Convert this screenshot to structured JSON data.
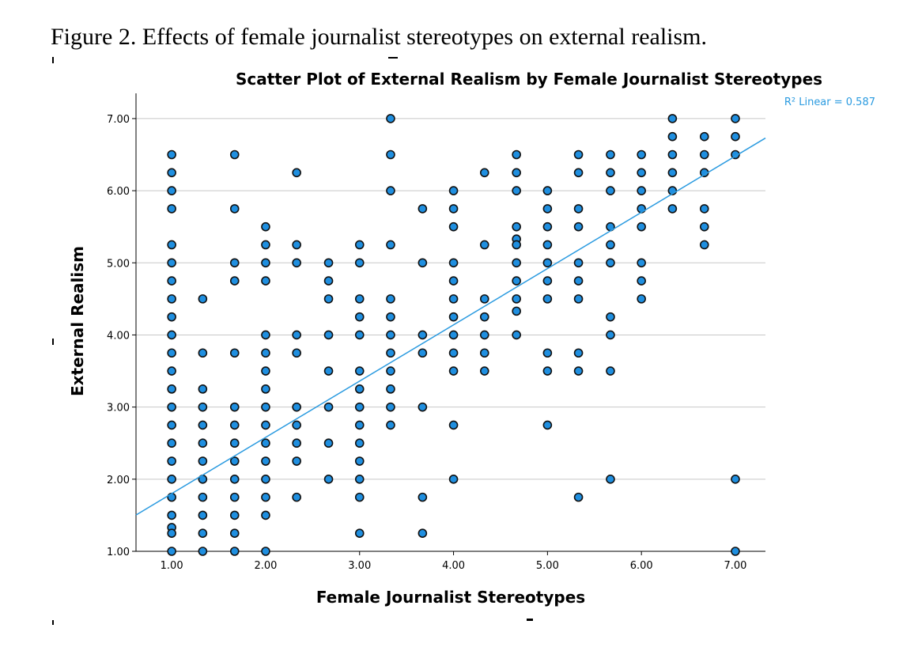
{
  "figure_caption": "Figure 2. Effects of female journalist stereotypes on external realism.",
  "chart_data": {
    "type": "scatter",
    "title": "Scatter Plot of External Realism by Female Journalist Stereotypes",
    "xlabel": "Female Journalist Stereotypes",
    "ylabel": "External Realism",
    "xlim": [
      0.62,
      7.32
    ],
    "ylim": [
      1.0,
      7.35
    ],
    "x_ticks": [
      1,
      2,
      3,
      4,
      5,
      6,
      7
    ],
    "y_ticks": [
      1,
      2,
      3,
      4,
      5,
      6,
      7
    ],
    "x_tick_labels": [
      "1.00",
      "2.00",
      "3.00",
      "4.00",
      "5.00",
      "6.00",
      "7.00"
    ],
    "y_tick_labels": [
      "1.00",
      "2.00",
      "3.00",
      "4.00",
      "5.00",
      "6.00",
      "7.00"
    ],
    "grid": "horizontal",
    "point_color": "#1f8fe0",
    "fit_line": {
      "label": "R² Linear = 0.587",
      "r_squared": 0.587,
      "intercept": 1.02,
      "slope": 0.78,
      "color": "#2b9be0"
    },
    "points": [
      [
        1.0,
        6.5
      ],
      [
        1.0,
        6.25
      ],
      [
        1.0,
        6.0
      ],
      [
        1.0,
        5.75
      ],
      [
        1.0,
        5.25
      ],
      [
        1.0,
        5.0
      ],
      [
        1.0,
        4.75
      ],
      [
        1.0,
        4.5
      ],
      [
        1.0,
        4.25
      ],
      [
        1.0,
        4.0
      ],
      [
        1.0,
        3.75
      ],
      [
        1.0,
        3.5
      ],
      [
        1.0,
        3.25
      ],
      [
        1.0,
        3.0
      ],
      [
        1.0,
        2.75
      ],
      [
        1.0,
        2.5
      ],
      [
        1.0,
        2.25
      ],
      [
        1.0,
        2.0
      ],
      [
        1.0,
        1.75
      ],
      [
        1.0,
        1.5
      ],
      [
        1.0,
        1.33
      ],
      [
        1.0,
        1.25
      ],
      [
        1.0,
        1.0
      ],
      [
        1.33,
        4.5
      ],
      [
        1.33,
        3.75
      ],
      [
        1.33,
        3.25
      ],
      [
        1.33,
        3.0
      ],
      [
        1.33,
        2.75
      ],
      [
        1.33,
        2.5
      ],
      [
        1.33,
        2.25
      ],
      [
        1.33,
        2.0
      ],
      [
        1.33,
        1.75
      ],
      [
        1.33,
        1.5
      ],
      [
        1.33,
        1.25
      ],
      [
        1.33,
        1.0
      ],
      [
        1.67,
        6.5
      ],
      [
        1.67,
        5.75
      ],
      [
        1.67,
        5.0
      ],
      [
        1.67,
        4.75
      ],
      [
        1.67,
        3.75
      ],
      [
        1.67,
        3.0
      ],
      [
        1.67,
        2.75
      ],
      [
        1.67,
        2.5
      ],
      [
        1.67,
        2.25
      ],
      [
        1.67,
        2.0
      ],
      [
        1.67,
        1.75
      ],
      [
        1.67,
        1.5
      ],
      [
        1.67,
        1.25
      ],
      [
        1.67,
        1.0
      ],
      [
        2.0,
        5.5
      ],
      [
        2.0,
        5.25
      ],
      [
        2.0,
        5.0
      ],
      [
        2.0,
        4.75
      ],
      [
        2.0,
        4.0
      ],
      [
        2.0,
        3.75
      ],
      [
        2.0,
        3.5
      ],
      [
        2.0,
        3.25
      ],
      [
        2.0,
        3.0
      ],
      [
        2.0,
        2.75
      ],
      [
        2.0,
        2.5
      ],
      [
        2.0,
        2.25
      ],
      [
        2.0,
        2.0
      ],
      [
        2.0,
        1.75
      ],
      [
        2.0,
        1.5
      ],
      [
        2.0,
        1.0
      ],
      [
        2.33,
        6.25
      ],
      [
        2.33,
        5.25
      ],
      [
        2.33,
        5.0
      ],
      [
        2.33,
        4.0
      ],
      [
        2.33,
        3.75
      ],
      [
        2.33,
        3.0
      ],
      [
        2.33,
        2.75
      ],
      [
        2.33,
        2.5
      ],
      [
        2.33,
        2.25
      ],
      [
        2.33,
        1.75
      ],
      [
        2.67,
        5.0
      ],
      [
        2.67,
        4.75
      ],
      [
        2.67,
        4.5
      ],
      [
        2.67,
        4.0
      ],
      [
        2.67,
        3.5
      ],
      [
        2.67,
        3.0
      ],
      [
        2.67,
        2.5
      ],
      [
        2.67,
        2.0
      ],
      [
        3.0,
        5.25
      ],
      [
        3.0,
        5.0
      ],
      [
        3.0,
        4.5
      ],
      [
        3.0,
        4.25
      ],
      [
        3.0,
        4.0
      ],
      [
        3.0,
        3.5
      ],
      [
        3.0,
        3.25
      ],
      [
        3.0,
        3.0
      ],
      [
        3.0,
        2.75
      ],
      [
        3.0,
        2.5
      ],
      [
        3.0,
        2.25
      ],
      [
        3.0,
        2.0
      ],
      [
        3.0,
        1.75
      ],
      [
        3.0,
        1.25
      ],
      [
        3.33,
        7.0
      ],
      [
        3.33,
        6.5
      ],
      [
        3.33,
        6.0
      ],
      [
        3.33,
        5.25
      ],
      [
        3.33,
        4.5
      ],
      [
        3.33,
        4.25
      ],
      [
        3.33,
        4.0
      ],
      [
        3.33,
        3.75
      ],
      [
        3.33,
        3.5
      ],
      [
        3.33,
        3.25
      ],
      [
        3.33,
        3.0
      ],
      [
        3.33,
        2.75
      ],
      [
        3.67,
        5.75
      ],
      [
        3.67,
        5.0
      ],
      [
        3.67,
        4.0
      ],
      [
        3.67,
        3.75
      ],
      [
        3.67,
        3.0
      ],
      [
        3.67,
        1.75
      ],
      [
        3.67,
        1.25
      ],
      [
        4.0,
        6.0
      ],
      [
        4.0,
        5.75
      ],
      [
        4.0,
        5.5
      ],
      [
        4.0,
        5.0
      ],
      [
        4.0,
        4.75
      ],
      [
        4.0,
        4.5
      ],
      [
        4.0,
        4.25
      ],
      [
        4.0,
        4.0
      ],
      [
        4.0,
        3.75
      ],
      [
        4.0,
        3.5
      ],
      [
        4.0,
        2.75
      ],
      [
        4.0,
        2.0
      ],
      [
        4.33,
        6.25
      ],
      [
        4.33,
        5.25
      ],
      [
        4.33,
        4.5
      ],
      [
        4.33,
        4.25
      ],
      [
        4.33,
        4.0
      ],
      [
        4.33,
        3.75
      ],
      [
        4.33,
        3.5
      ],
      [
        4.67,
        6.5
      ],
      [
        4.67,
        6.25
      ],
      [
        4.67,
        6.0
      ],
      [
        4.67,
        5.5
      ],
      [
        4.67,
        5.33
      ],
      [
        4.67,
        5.25
      ],
      [
        4.67,
        5.0
      ],
      [
        4.67,
        4.75
      ],
      [
        4.67,
        4.5
      ],
      [
        4.67,
        4.33
      ],
      [
        4.67,
        4.0
      ],
      [
        5.0,
        6.0
      ],
      [
        5.0,
        5.75
      ],
      [
        5.0,
        5.5
      ],
      [
        5.0,
        5.25
      ],
      [
        5.0,
        5.0
      ],
      [
        5.0,
        4.75
      ],
      [
        5.0,
        4.5
      ],
      [
        5.0,
        3.75
      ],
      [
        5.0,
        3.5
      ],
      [
        5.0,
        2.75
      ],
      [
        5.33,
        6.5
      ],
      [
        5.33,
        6.25
      ],
      [
        5.33,
        5.75
      ],
      [
        5.33,
        5.5
      ],
      [
        5.33,
        5.0
      ],
      [
        5.33,
        4.75
      ],
      [
        5.33,
        4.5
      ],
      [
        5.33,
        3.75
      ],
      [
        5.33,
        3.5
      ],
      [
        5.33,
        1.75
      ],
      [
        5.67,
        6.5
      ],
      [
        5.67,
        6.25
      ],
      [
        5.67,
        6.0
      ],
      [
        5.67,
        5.5
      ],
      [
        5.67,
        5.25
      ],
      [
        5.67,
        5.0
      ],
      [
        5.67,
        4.25
      ],
      [
        5.67,
        4.0
      ],
      [
        5.67,
        3.5
      ],
      [
        5.67,
        2.0
      ],
      [
        6.0,
        6.5
      ],
      [
        6.0,
        6.25
      ],
      [
        6.0,
        6.0
      ],
      [
        6.0,
        5.75
      ],
      [
        6.0,
        5.5
      ],
      [
        6.0,
        5.0
      ],
      [
        6.0,
        4.75
      ],
      [
        6.0,
        4.5
      ],
      [
        6.33,
        7.0
      ],
      [
        6.33,
        6.75
      ],
      [
        6.33,
        6.5
      ],
      [
        6.33,
        6.25
      ],
      [
        6.33,
        6.0
      ],
      [
        6.33,
        5.75
      ],
      [
        6.67,
        6.75
      ],
      [
        6.67,
        6.5
      ],
      [
        6.67,
        6.25
      ],
      [
        6.67,
        5.75
      ],
      [
        6.67,
        5.5
      ],
      [
        6.67,
        5.25
      ],
      [
        7.0,
        7.0
      ],
      [
        7.0,
        6.75
      ],
      [
        7.0,
        6.5
      ],
      [
        7.0,
        2.0
      ],
      [
        7.0,
        1.0
      ]
    ]
  }
}
